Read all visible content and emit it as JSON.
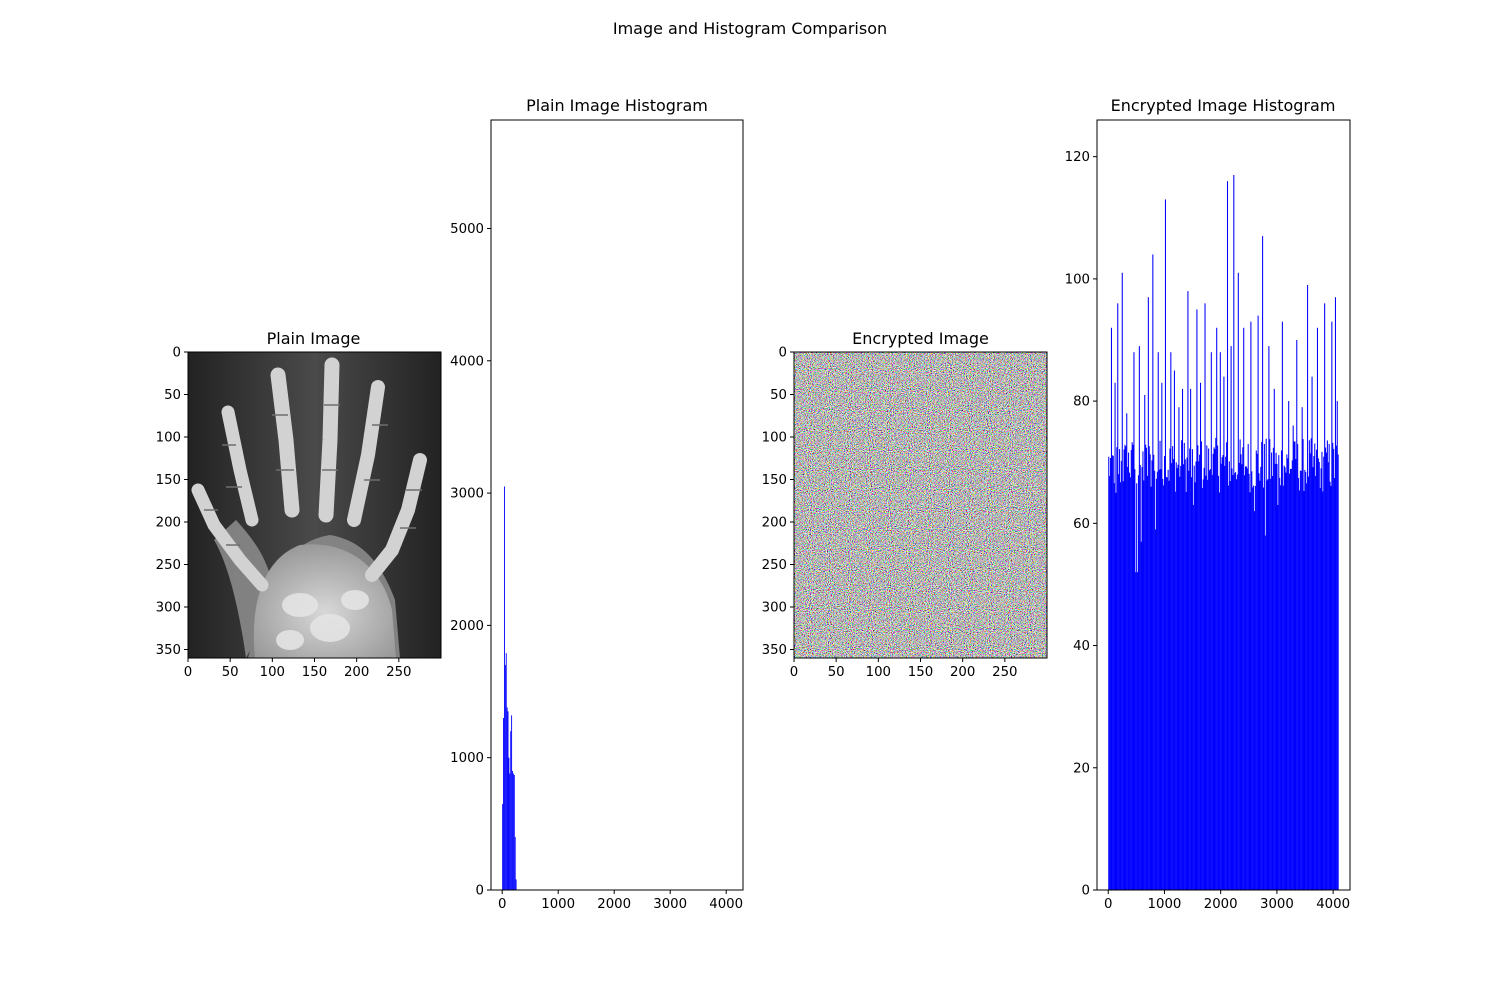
{
  "figure": {
    "suptitle": "Image and Histogram Comparison"
  },
  "colors": {
    "histogram_bars": "#0000ff",
    "axes_frame": "#000000",
    "background": "#ffffff"
  },
  "chart_data": [
    {
      "type": "image",
      "title": "Plain Image",
      "content": "grayscale hand x-ray",
      "xlim": [
        0,
        300
      ],
      "ylim": [
        360,
        0
      ],
      "xticks": [
        0,
        50,
        100,
        150,
        200,
        250
      ],
      "yticks": [
        0,
        50,
        100,
        150,
        200,
        250,
        300,
        350
      ]
    },
    {
      "type": "bar",
      "title": "Plain Image Histogram",
      "xlim": [
        -200,
        4300
      ],
      "ylim": [
        0,
        5820
      ],
      "xticks": [
        0,
        1000,
        2000,
        3000,
        4000
      ],
      "yticks": [
        0,
        1000,
        2000,
        3000,
        4000,
        5000
      ],
      "bar_color": "#0000ff",
      "x": [
        0,
        16,
        32,
        48,
        64,
        80,
        96,
        112,
        128,
        144,
        160,
        176,
        192,
        208,
        224,
        240,
        256
      ],
      "values": [
        650,
        1300,
        3050,
        1700,
        1790,
        1380,
        1350,
        1000,
        880,
        1200,
        1320,
        900,
        880,
        870,
        400,
        80,
        0
      ]
    },
    {
      "type": "image",
      "title": "Encrypted Image",
      "content": "random color noise",
      "xlim": [
        0,
        300
      ],
      "ylim": [
        360,
        0
      ],
      "xticks": [
        0,
        50,
        100,
        150,
        200,
        250
      ],
      "yticks": [
        0,
        50,
        100,
        150,
        200,
        250,
        300,
        350
      ]
    },
    {
      "type": "bar",
      "title": "Encrypted Image Histogram",
      "xlim": [
        -200,
        4300
      ],
      "ylim": [
        0,
        126
      ],
      "xticks": [
        0,
        1000,
        2000,
        3000,
        4000
      ],
      "yticks": [
        0,
        20,
        40,
        60,
        80,
        100,
        120
      ],
      "bar_color": "#0000ff",
      "x_range": [
        0,
        4096
      ],
      "bin_width": 16,
      "baseline_min": 57,
      "baseline_max": 74,
      "peaks": [
        [
          48,
          92
        ],
        [
          112,
          83
        ],
        [
          128,
          65
        ],
        [
          160,
          96
        ],
        [
          240,
          101
        ],
        [
          320,
          78
        ],
        [
          400,
          72
        ],
        [
          448,
          88
        ],
        [
          480,
          52
        ],
        [
          512,
          52
        ],
        [
          544,
          89
        ],
        [
          576,
          57
        ],
        [
          640,
          81
        ],
        [
          704,
          97
        ],
        [
          784,
          104
        ],
        [
          832,
          59
        ],
        [
          880,
          88
        ],
        [
          944,
          83
        ],
        [
          1008,
          113
        ],
        [
          1104,
          88
        ],
        [
          1168,
          85
        ],
        [
          1248,
          79
        ],
        [
          1312,
          82
        ],
        [
          1408,
          98
        ],
        [
          1456,
          82
        ],
        [
          1504,
          63
        ],
        [
          1568,
          95
        ],
        [
          1632,
          83
        ],
        [
          1712,
          96
        ],
        [
          1824,
          88
        ],
        [
          1920,
          92
        ],
        [
          1984,
          88
        ],
        [
          2048,
          84
        ],
        [
          2112,
          116
        ],
        [
          2176,
          89
        ],
        [
          2224,
          117
        ],
        [
          2304,
          101
        ],
        [
          2400,
          92
        ],
        [
          2464,
          69
        ],
        [
          2528,
          93
        ],
        [
          2592,
          62
        ],
        [
          2656,
          94
        ],
        [
          2736,
          107
        ],
        [
          2784,
          58
        ],
        [
          2848,
          89
        ],
        [
          2944,
          82
        ],
        [
          3008,
          63
        ],
        [
          3088,
          93
        ],
        [
          3200,
          80
        ],
        [
          3280,
          76
        ],
        [
          3344,
          90
        ],
        [
          3440,
          79
        ],
        [
          3536,
          99
        ],
        [
          3616,
          84
        ],
        [
          3712,
          92
        ],
        [
          3776,
          69
        ],
        [
          3840,
          96
        ],
        [
          3904,
          70
        ],
        [
          3968,
          93
        ],
        [
          4032,
          97
        ],
        [
          4064,
          80
        ]
      ]
    }
  ]
}
